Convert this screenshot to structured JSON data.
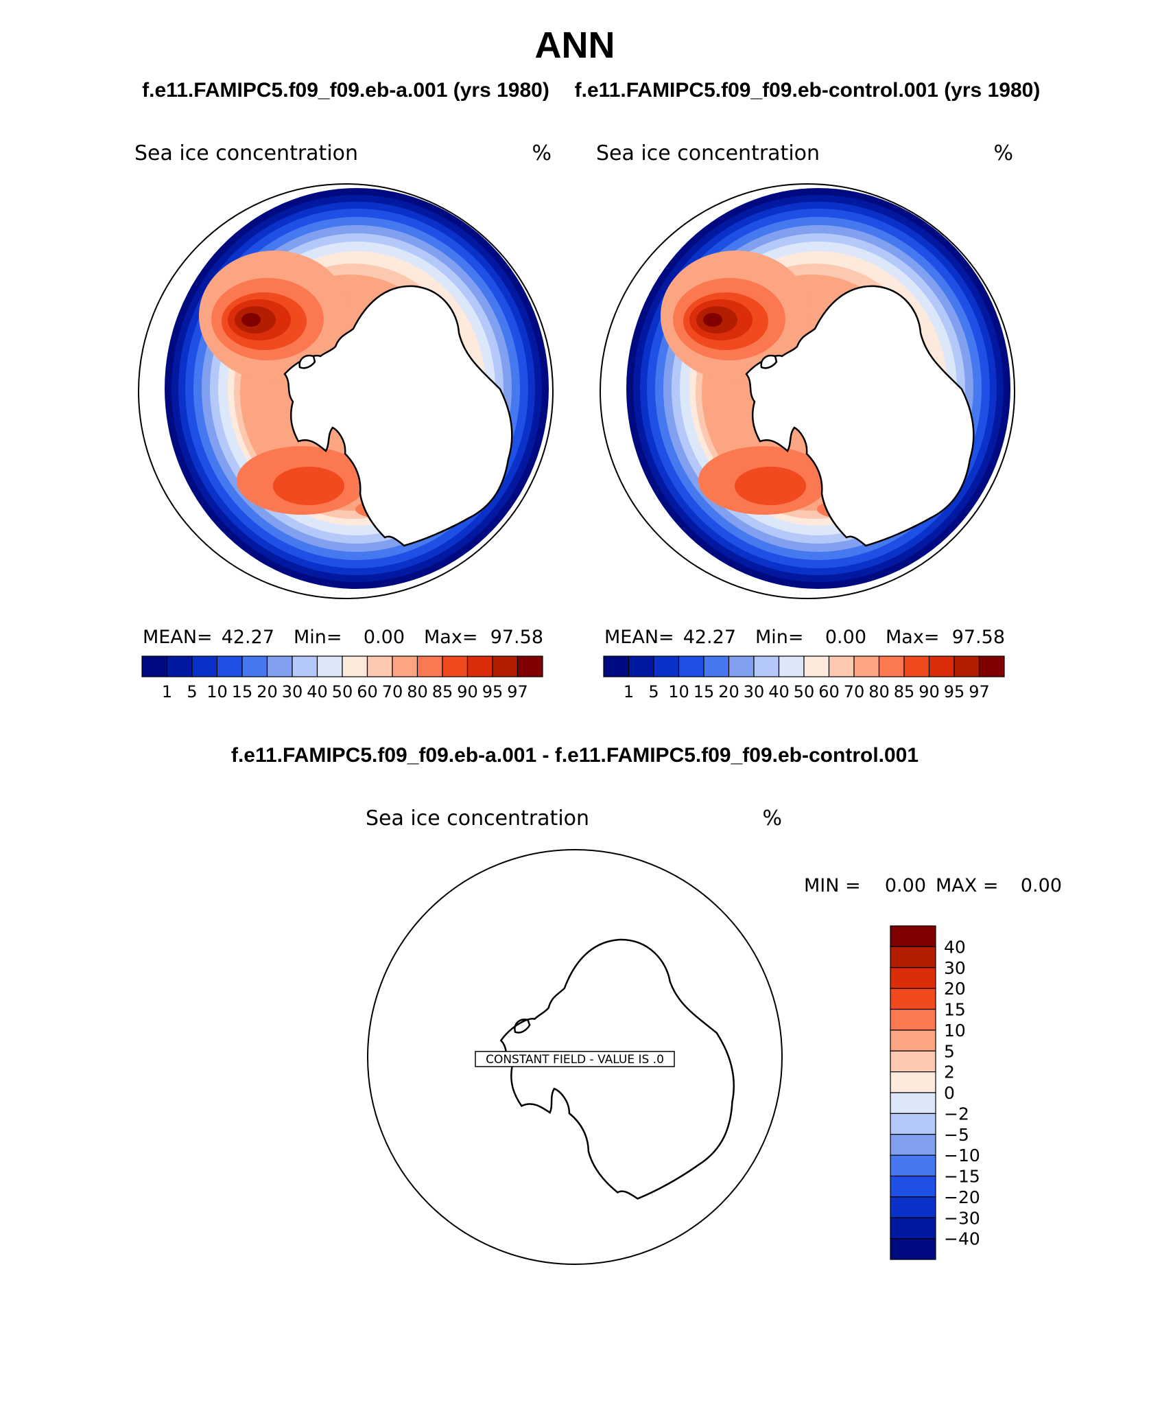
{
  "page": {
    "title": "ANN",
    "case_a_title": "f.e11.FAMIPC5.f09_f09.eb-a.001 (yrs 1980)",
    "case_b_title": "f.e11.FAMIPC5.f09_f09.eb-control.001 (yrs 1980)",
    "diff_title": "f.e11.FAMIPC5.f09_f09.eb-a.001 - f.e11.FAMIPC5.f09_f09.eb-control.001"
  },
  "panels": [
    {
      "variable": "Sea ice concentration",
      "units": "%",
      "mean_label": "MEAN=",
      "mean_value": "42.27",
      "min_label": "Min=",
      "min_value": "0.00",
      "max_label": "Max=",
      "max_value": "97.58"
    },
    {
      "variable": "Sea ice concentration",
      "units": "%",
      "mean_label": "MEAN=",
      "mean_value": "42.27",
      "min_label": "Min=",
      "min_value": "0.00",
      "max_label": "Max=",
      "max_value": "97.58"
    }
  ],
  "colorbar": {
    "labels": [
      "1",
      "5",
      "10",
      "15",
      "20",
      "30",
      "40",
      "50",
      "60",
      "70",
      "80",
      "85",
      "90",
      "95",
      "97"
    ],
    "colors": [
      "#000a80",
      "#0019a0",
      "#0a32c8",
      "#1e50e6",
      "#4678f0",
      "#82a0f0",
      "#b4c8fa",
      "#dce8fa",
      "#fdeadc",
      "#fdc8b0",
      "#fca582",
      "#fc7850",
      "#f04a1e",
      "#dc2d0a",
      "#b41e00",
      "#800000"
    ]
  },
  "diff_panel": {
    "variable": "Sea ice concentration",
    "units": "%",
    "min_label": "MIN =",
    "min_value": "0.00",
    "max_label": "MAX =",
    "max_value": "0.00",
    "constant_field_label": "CONSTANT FIELD - VALUE IS .0",
    "colorbar_labels": [
      "40",
      "30",
      "20",
      "15",
      "10",
      "5",
      "2",
      "0",
      "−2",
      "−5",
      "−10",
      "−15",
      "−20",
      "−30",
      "−40"
    ],
    "colorbar_colors": [
      "#800000",
      "#b41e00",
      "#dc2d0a",
      "#f04a1e",
      "#fc7850",
      "#fca582",
      "#fdc8b0",
      "#fdeadc",
      "#dce8fa",
      "#b4c8fa",
      "#82a0f0",
      "#4678f0",
      "#1e50e6",
      "#0a32c8",
      "#0019a0",
      "#000a80"
    ]
  }
}
